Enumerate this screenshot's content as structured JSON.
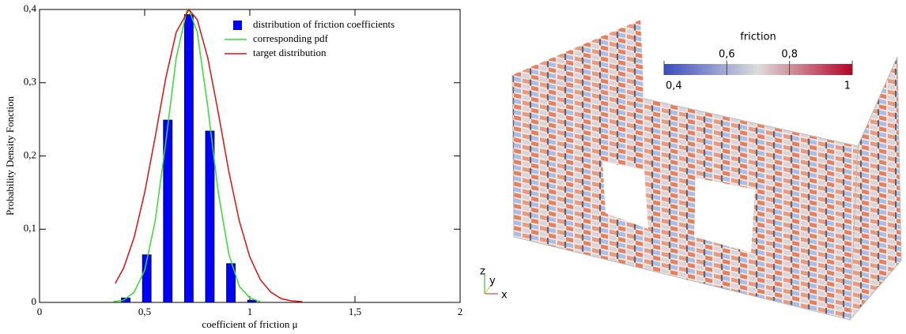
{
  "chart_data": [
    {
      "type": "bar",
      "x_label": "coefficient of friction μ",
      "y_label": "Probability Density Fonction",
      "xlim": [
        0,
        2
      ],
      "xticks": [
        0,
        {
          "value": 0.5,
          "label": "0,5"
        },
        1,
        {
          "value": 1.5,
          "label": "1,5"
        },
        2
      ],
      "ylim": [
        0,
        0.4
      ],
      "yticks": [
        0,
        {
          "value": 0.1,
          "label": "0,1"
        },
        {
          "value": 0.2,
          "label": "0,2"
        },
        {
          "value": 0.3,
          "label": "0,3"
        },
        {
          "value": 0.4,
          "label": "0,4"
        }
      ],
      "legend": "top-right",
      "series": [
        {
          "name": "distribution of friction coefficients",
          "type": "bar",
          "color": "#0000ff",
          "x": [
            0.41,
            0.51,
            0.61,
            0.71,
            0.81,
            0.91,
            1.01
          ],
          "values": [
            0.006,
            0.065,
            0.249,
            0.393,
            0.234,
            0.053,
            0.003
          ]
        },
        {
          "name": "corresponding pdf",
          "type": "line",
          "color": "#33dd33",
          "x": [
            0.35,
            0.4,
            0.45,
            0.5,
            0.55,
            0.6,
            0.65,
            0.7,
            0.71,
            0.75,
            0.8,
            0.85,
            0.9,
            0.95,
            1.0,
            1.05
          ],
          "values": [
            0.001,
            0.003,
            0.014,
            0.044,
            0.111,
            0.218,
            0.334,
            0.398,
            0.4,
            0.369,
            0.267,
            0.15,
            0.066,
            0.022,
            0.006,
            0.001
          ]
        },
        {
          "name": "target distribution",
          "type": "line",
          "color": "#e01010",
          "x": [
            0.36,
            0.4,
            0.45,
            0.5,
            0.55,
            0.6,
            0.65,
            0.71,
            0.75,
            0.8,
            0.85,
            0.9,
            0.95,
            1.0,
            1.05,
            1.1,
            1.15,
            1.2,
            1.25
          ],
          "values": [
            0.026,
            0.047,
            0.089,
            0.15,
            0.226,
            0.306,
            0.369,
            0.4,
            0.386,
            0.334,
            0.259,
            0.179,
            0.111,
            0.062,
            0.031,
            0.014,
            0.005,
            0.002,
            0.001
          ]
        }
      ]
    },
    {
      "type": "colorbar",
      "title": "friction",
      "clim": [
        0.4,
        1
      ],
      "ticks": [
        {
          "value": 0.4,
          "label": "0,4"
        },
        {
          "value": 0.6,
          "label": "0,6"
        },
        {
          "value": 0.8,
          "label": "0,8"
        },
        1
      ],
      "colors": [
        "#3b4cc0",
        "#dddddd",
        "#b40426"
      ],
      "axes_triad": [
        "z",
        "y",
        "x"
      ]
    }
  ]
}
